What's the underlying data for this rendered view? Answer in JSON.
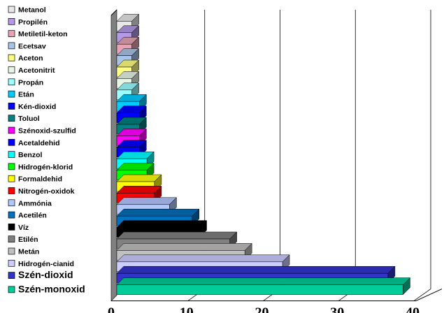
{
  "chart_data": {
    "type": "bar",
    "orientation": "horizontal",
    "style": "3d",
    "title": "",
    "xlabel": "",
    "ylabel": "",
    "xlim": [
      0,
      40
    ],
    "x_ticks": [
      "0",
      "10",
      "20",
      "30",
      "40"
    ],
    "grid": "vertical",
    "legend_position": "left",
    "categories": [
      "Metanol",
      "Propilén",
      "Metiletil-keton",
      "Ecetsav",
      "Aceton",
      "Acetonitrit",
      "Propán",
      "Etán",
      "Kén-dioxid",
      "Toluol",
      "Szénoxid-szulfid",
      "Acetaldehid",
      "Benzol",
      "Hidrogén-klorid",
      "Formaldehid",
      "Nitrogén-oxidok",
      "Ammónia",
      "Acetilén",
      "Víz",
      "Etilén",
      "Metán",
      "Hidrogén-cianid",
      "Szén-dioxid",
      "Szén-monoxid"
    ],
    "values": [
      2,
      2,
      2,
      2,
      2,
      2,
      2,
      3,
      3,
      3,
      3,
      3,
      4,
      4,
      5,
      5,
      7,
      10,
      11,
      15,
      17,
      22,
      36,
      38
    ],
    "colors": [
      "#e8e8e8",
      "#b399e6",
      "#e6a3b3",
      "#a8c4e6",
      "#ffff80",
      "#e6f5e6",
      "#99ffff",
      "#00ccff",
      "#0000ff",
      "#008080",
      "#ff00ff",
      "#0000ff",
      "#00ffff",
      "#00ff00",
      "#ffff00",
      "#ff0000",
      "#b3c7ff",
      "#0070c0",
      "#000000",
      "#808080",
      "#c0c0c0",
      "#ccccff",
      "#3333cc",
      "#00cc99"
    ],
    "large_legend_labels": [
      "Szén-dioxid",
      "Szén-monoxid"
    ]
  }
}
